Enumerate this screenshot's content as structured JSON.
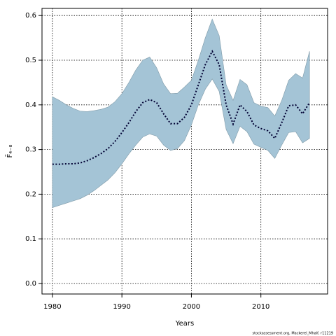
{
  "chart_data": {
    "type": "line",
    "xlabel": "Years",
    "ylabel": "F̄₄₋₈",
    "caption": "stockassessment.org, Mackerel_Mhalf, r11219",
    "x": [
      1980,
      1981,
      1982,
      1983,
      1984,
      1985,
      1986,
      1987,
      1988,
      1989,
      1990,
      1991,
      1992,
      1993,
      1994,
      1995,
      1996,
      1997,
      1998,
      1999,
      2000,
      2001,
      2002,
      2003,
      2004,
      2005,
      2006,
      2007,
      2008,
      2009,
      2010,
      2011,
      2012,
      2013,
      2014,
      2015,
      2016,
      2017
    ],
    "values": [
      0.267,
      0.267,
      0.268,
      0.268,
      0.27,
      0.275,
      0.282,
      0.291,
      0.302,
      0.318,
      0.338,
      0.36,
      0.385,
      0.405,
      0.412,
      0.405,
      0.38,
      0.358,
      0.358,
      0.372,
      0.4,
      0.445,
      0.49,
      0.52,
      0.49,
      0.4,
      0.357,
      0.4,
      0.385,
      0.355,
      0.347,
      0.342,
      0.325,
      0.36,
      0.398,
      0.4,
      0.38,
      0.405
    ],
    "color": "#000033",
    "band": {
      "color": "#a4c4d6",
      "upper": [
        0.418,
        0.41,
        0.4,
        0.392,
        0.386,
        0.385,
        0.387,
        0.39,
        0.395,
        0.407,
        0.425,
        0.45,
        0.478,
        0.5,
        0.507,
        0.483,
        0.447,
        0.425,
        0.426,
        0.44,
        0.455,
        0.5,
        0.55,
        0.592,
        0.555,
        0.445,
        0.41,
        0.457,
        0.445,
        0.405,
        0.397,
        0.394,
        0.375,
        0.41,
        0.455,
        0.47,
        0.46,
        0.52
      ],
      "lower": [
        0.17,
        0.175,
        0.18,
        0.185,
        0.19,
        0.198,
        0.208,
        0.22,
        0.232,
        0.248,
        0.268,
        0.29,
        0.31,
        0.328,
        0.335,
        0.33,
        0.31,
        0.298,
        0.302,
        0.32,
        0.355,
        0.4,
        0.435,
        0.458,
        0.43,
        0.345,
        0.313,
        0.352,
        0.34,
        0.312,
        0.305,
        0.298,
        0.28,
        0.31,
        0.338,
        0.34,
        0.315,
        0.325
      ]
    },
    "xlim": [
      1978.5,
      2019.6
    ],
    "ylim": [
      -0.0235,
      0.616
    ],
    "xticks": [
      1980,
      1990,
      2000,
      2010
    ],
    "yticks": [
      {
        "value": 0,
        "label": "0.0"
      },
      0.1,
      0.2,
      0.3,
      0.4,
      0.5,
      0.6
    ],
    "grid": true
  }
}
